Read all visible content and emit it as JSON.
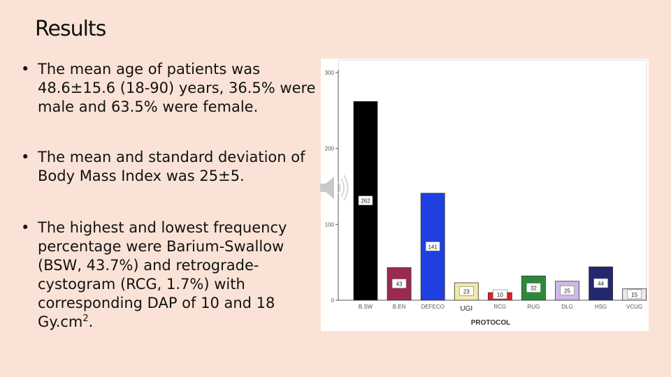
{
  "slide": {
    "title": "Results",
    "bullet_symbol": "•",
    "bullets": {
      "b1": "The mean age of patients was 48.6±15.6 (18-90) years, 36.5% were male and 63.5% were female.",
      "b2": "The mean and standard deviation of Body Mass Index was 25±5.",
      "b3_text": "The highest and lowest frequency percentage were Barium-Swallow (BSW, 43.7%) and retrograde-cystogram (RCG, 1.7%) with corresponding DAP of 10 and 18 Gy.cm",
      "b3_sup": "2",
      "b3_end": "."
    },
    "speaker_icon": "speaker-icon"
  },
  "chart_data": {
    "type": "bar",
    "categories": [
      "B.SW",
      "B.EN",
      "DEFECO",
      "UGI",
      "RCG",
      "RUG",
      "DLG",
      "HSG",
      "VCUG"
    ],
    "values": [
      262,
      43,
      141,
      23,
      10,
      32,
      25,
      44,
      15
    ],
    "colors": [
      "#000000",
      "#9b2a4e",
      "#1f3fe0",
      "#f2e9a6",
      "#e21f26",
      "#2a8a3a",
      "#cdb9e6",
      "#23286e",
      "#e9e9e9"
    ],
    "title": "",
    "xlabel": "PROTOCOL",
    "ylabel": "",
    "ylim": [
      0,
      300
    ],
    "yticks": [
      0,
      100,
      200,
      300
    ],
    "grid": false,
    "legend": "none"
  }
}
